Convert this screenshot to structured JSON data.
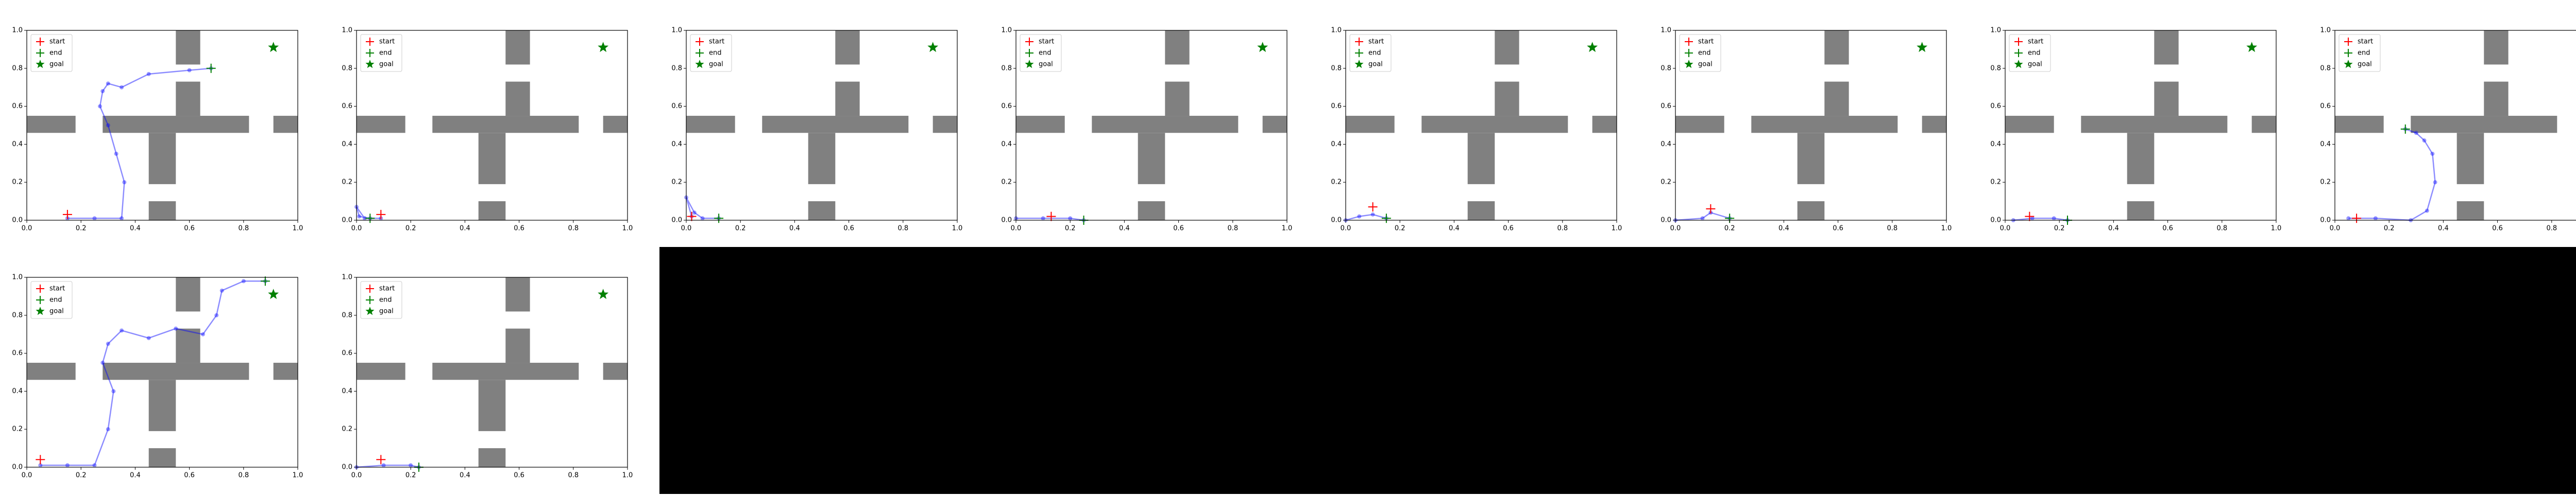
{
  "obstacles": [
    [
      0,
      0.46,
      0.18,
      0.55
    ],
    [
      0.28,
      0.46,
      0.82,
      0.55
    ],
    [
      0.91,
      0.46,
      1,
      0.55
    ],
    [
      0.55,
      0.82,
      0.64,
      1
    ],
    [
      0.55,
      0.55,
      0.64,
      0.73
    ],
    [
      0.45,
      0.19,
      0.55,
      0.46
    ],
    [
      0.45,
      0,
      0.55,
      0.1
    ]
  ],
  "chart_data": [
    {
      "type": "line",
      "xlim": [
        0,
        1
      ],
      "ylim": [
        0,
        1
      ],
      "xticks": [
        {
          "value": 0,
          "label": "0.0"
        },
        0.2,
        0.4,
        0.6,
        0.8,
        {
          "value": 1,
          "label": "1.0"
        }
      ],
      "yticks": [
        {
          "value": 0,
          "label": "0.0"
        },
        0.2,
        0.4,
        0.6,
        0.8,
        {
          "value": 1,
          "label": "1.0"
        }
      ],
      "legend": "upper left",
      "trajectory": {
        "color": "#0000ff",
        "x": [
          0.15,
          0.25,
          0.35,
          0.36,
          0.33,
          0.3,
          0.27,
          0.28,
          0.3,
          0.35,
          0.45,
          0.6,
          0.68
        ],
        "y": [
          0.01,
          0.01,
          0.01,
          0.2,
          0.35,
          0.5,
          0.6,
          0.68,
          0.72,
          0.7,
          0.77,
          0.79,
          0.8
        ]
      },
      "series": [
        {
          "name": "start",
          "color": "#ff0000",
          "marker": "+",
          "x": [
            0.15
          ],
          "y": [
            0.03
          ]
        },
        {
          "name": "end",
          "color": "#008000",
          "marker": "+",
          "x": [
            0.68
          ],
          "y": [
            0.8
          ]
        },
        {
          "name": "goal",
          "color": "#008000",
          "marker": "*",
          "x": [
            0.91
          ],
          "y": [
            0.91
          ]
        }
      ]
    },
    {
      "type": "line",
      "xlim": [
        0,
        1
      ],
      "ylim": [
        0,
        1
      ],
      "xticks": [
        {
          "value": 0,
          "label": "0.0"
        },
        0.2,
        0.4,
        0.6,
        0.8,
        {
          "value": 1,
          "label": "1.0"
        }
      ],
      "yticks": [
        {
          "value": 0,
          "label": "0.0"
        },
        0.2,
        0.4,
        0.6,
        0.8,
        {
          "value": 1,
          "label": "1.0"
        }
      ],
      "legend": "upper left",
      "trajectory": {
        "color": "#0000ff",
        "x": [
          0.09,
          0.03,
          0.0,
          0.01,
          0.05
        ],
        "y": [
          0.01,
          0.01,
          0.07,
          0.02,
          0.01
        ]
      },
      "series": [
        {
          "name": "start",
          "color": "#ff0000",
          "marker": "+",
          "x": [
            0.09
          ],
          "y": [
            0.03
          ]
        },
        {
          "name": "end",
          "color": "#008000",
          "marker": "+",
          "x": [
            0.05
          ],
          "y": [
            0.01
          ]
        },
        {
          "name": "goal",
          "color": "#008000",
          "marker": "*",
          "x": [
            0.91
          ],
          "y": [
            0.91
          ]
        }
      ]
    },
    {
      "type": "line",
      "xlim": [
        0,
        1
      ],
      "ylim": [
        0,
        1
      ],
      "xticks": [
        {
          "value": 0,
          "label": "0.0"
        },
        0.2,
        0.4,
        0.6,
        0.8,
        {
          "value": 1,
          "label": "1.0"
        }
      ],
      "yticks": [
        {
          "value": 0,
          "label": "0.0"
        },
        0.2,
        0.4,
        0.6,
        0.8,
        {
          "value": 1,
          "label": "1.0"
        }
      ],
      "legend": "upper left",
      "trajectory": {
        "color": "#0000ff",
        "x": [
          0.02,
          0.0,
          0.03,
          0.06,
          0.12
        ],
        "y": [
          0.02,
          0.12,
          0.04,
          0.01,
          0.01
        ]
      },
      "series": [
        {
          "name": "start",
          "color": "#ff0000",
          "marker": "+",
          "x": [
            0.02
          ],
          "y": [
            0.02
          ]
        },
        {
          "name": "end",
          "color": "#008000",
          "marker": "+",
          "x": [
            0.12
          ],
          "y": [
            0.01
          ]
        },
        {
          "name": "goal",
          "color": "#008000",
          "marker": "*",
          "x": [
            0.91
          ],
          "y": [
            0.91
          ]
        }
      ]
    },
    {
      "type": "line",
      "xlim": [
        0,
        1
      ],
      "ylim": [
        0,
        1
      ],
      "xticks": [
        {
          "value": 0,
          "label": "0.0"
        },
        0.2,
        0.4,
        0.6,
        0.8,
        {
          "value": 1,
          "label": "1.0"
        }
      ],
      "yticks": [
        {
          "value": 0,
          "label": "0.0"
        },
        0.2,
        0.4,
        0.6,
        0.8,
        {
          "value": 1,
          "label": "1.0"
        }
      ],
      "legend": "upper left",
      "trajectory": {
        "color": "#0000ff",
        "x": [
          0.0,
          0.1,
          0.2,
          0.25
        ],
        "y": [
          0.01,
          0.01,
          0.01,
          0.0
        ]
      },
      "series": [
        {
          "name": "start",
          "color": "#ff0000",
          "marker": "+",
          "x": [
            0.13
          ],
          "y": [
            0.02
          ]
        },
        {
          "name": "end",
          "color": "#008000",
          "marker": "+",
          "x": [
            0.25
          ],
          "y": [
            0.0
          ]
        },
        {
          "name": "goal",
          "color": "#008000",
          "marker": "*",
          "x": [
            0.91
          ],
          "y": [
            0.91
          ]
        }
      ]
    },
    {
      "type": "line",
      "xlim": [
        0,
        1
      ],
      "ylim": [
        0,
        1
      ],
      "xticks": [
        {
          "value": 0,
          "label": "0.0"
        },
        0.2,
        0.4,
        0.6,
        0.8,
        {
          "value": 1,
          "label": "1.0"
        }
      ],
      "yticks": [
        {
          "value": 0,
          "label": "0.0"
        },
        0.2,
        0.4,
        0.6,
        0.8,
        {
          "value": 1,
          "label": "1.0"
        }
      ],
      "legend": "upper left",
      "trajectory": {
        "color": "#0000ff",
        "x": [
          0.0,
          0.05,
          0.1,
          0.15
        ],
        "y": [
          0.0,
          0.02,
          0.03,
          0.01
        ]
      },
      "series": [
        {
          "name": "start",
          "color": "#ff0000",
          "marker": "+",
          "x": [
            0.1
          ],
          "y": [
            0.07
          ]
        },
        {
          "name": "end",
          "color": "#008000",
          "marker": "+",
          "x": [
            0.15
          ],
          "y": [
            0.01
          ]
        },
        {
          "name": "goal",
          "color": "#008000",
          "marker": "*",
          "x": [
            0.91
          ],
          "y": [
            0.91
          ]
        }
      ]
    },
    {
      "type": "line",
      "xlim": [
        0,
        1
      ],
      "ylim": [
        0,
        1
      ],
      "xticks": [
        {
          "value": 0,
          "label": "0.0"
        },
        0.2,
        0.4,
        0.6,
        0.8,
        {
          "value": 1,
          "label": "1.0"
        }
      ],
      "yticks": [
        {
          "value": 0,
          "label": "0.0"
        },
        0.2,
        0.4,
        0.6,
        0.8,
        {
          "value": 1,
          "label": "1.0"
        }
      ],
      "legend": "upper left",
      "trajectory": {
        "color": "#0000ff",
        "x": [
          0.0,
          0.1,
          0.13,
          0.2
        ],
        "y": [
          0.0,
          0.01,
          0.04,
          0.01
        ]
      },
      "series": [
        {
          "name": "start",
          "color": "#ff0000",
          "marker": "+",
          "x": [
            0.13
          ],
          "y": [
            0.06
          ]
        },
        {
          "name": "end",
          "color": "#008000",
          "marker": "+",
          "x": [
            0.2
          ],
          "y": [
            0.01
          ]
        },
        {
          "name": "goal",
          "color": "#008000",
          "marker": "*",
          "x": [
            0.91
          ],
          "y": [
            0.91
          ]
        }
      ]
    },
    {
      "type": "line",
      "xlim": [
        0,
        1
      ],
      "ylim": [
        0,
        1
      ],
      "xticks": [
        {
          "value": 0,
          "label": "0.0"
        },
        0.2,
        0.4,
        0.6,
        0.8,
        {
          "value": 1,
          "label": "1.0"
        }
      ],
      "yticks": [
        {
          "value": 0,
          "label": "0.0"
        },
        0.2,
        0.4,
        0.6,
        0.8,
        {
          "value": 1,
          "label": "1.0"
        }
      ],
      "legend": "upper left",
      "trajectory": {
        "color": "#0000ff",
        "x": [
          0.03,
          0.1,
          0.18,
          0.23
        ],
        "y": [
          0.0,
          0.01,
          0.01,
          0.0
        ]
      },
      "series": [
        {
          "name": "start",
          "color": "#ff0000",
          "marker": "+",
          "x": [
            0.09
          ],
          "y": [
            0.02
          ]
        },
        {
          "name": "end",
          "color": "#008000",
          "marker": "+",
          "x": [
            0.23
          ],
          "y": [
            0.0
          ]
        },
        {
          "name": "goal",
          "color": "#008000",
          "marker": "*",
          "x": [
            0.91
          ],
          "y": [
            0.91
          ]
        }
      ]
    },
    {
      "type": "line",
      "xlim": [
        0,
        1
      ],
      "ylim": [
        0,
        1
      ],
      "xticks": [
        {
          "value": 0,
          "label": "0.0"
        },
        0.2,
        0.4,
        0.6,
        0.8,
        {
          "value": 1,
          "label": "1.0"
        }
      ],
      "yticks": [
        {
          "value": 0,
          "label": "0.0"
        },
        0.2,
        0.4,
        0.6,
        0.8,
        {
          "value": 1,
          "label": "1.0"
        }
      ],
      "legend": "upper left",
      "trajectory": {
        "color": "#0000ff",
        "x": [
          0.05,
          0.15,
          0.28,
          0.34,
          0.37,
          0.36,
          0.33,
          0.3,
          0.26
        ],
        "y": [
          0.01,
          0.01,
          0.0,
          0.05,
          0.2,
          0.35,
          0.42,
          0.46,
          0.48
        ]
      },
      "series": [
        {
          "name": "start",
          "color": "#ff0000",
          "marker": "+",
          "x": [
            0.08
          ],
          "y": [
            0.01
          ]
        },
        {
          "name": "end",
          "color": "#008000",
          "marker": "+",
          "x": [
            0.26
          ],
          "y": [
            0.48
          ]
        },
        {
          "name": "goal",
          "color": "#008000",
          "marker": "*",
          "x": [
            0.91
          ],
          "y": [
            0.91
          ]
        }
      ]
    },
    {
      "type": "line",
      "xlim": [
        0,
        1
      ],
      "ylim": [
        0,
        1
      ],
      "xticks": [
        {
          "value": 0,
          "label": "0.0"
        },
        0.2,
        0.4,
        0.6,
        0.8,
        {
          "value": 1,
          "label": "1.0"
        }
      ],
      "yticks": [
        {
          "value": 0,
          "label": "0.0"
        },
        0.2,
        0.4,
        0.6,
        0.8,
        {
          "value": 1,
          "label": "1.0"
        }
      ],
      "legend": "upper left",
      "trajectory": {
        "color": "#0000ff",
        "x": [
          0.05,
          0.15,
          0.25,
          0.3,
          0.32,
          0.28,
          0.3,
          0.35,
          0.45,
          0.55,
          0.65,
          0.7,
          0.72,
          0.8,
          0.88
        ],
        "y": [
          0.01,
          0.01,
          0.01,
          0.2,
          0.4,
          0.55,
          0.65,
          0.72,
          0.68,
          0.73,
          0.7,
          0.8,
          0.93,
          0.98,
          0.98
        ]
      },
      "series": [
        {
          "name": "start",
          "color": "#ff0000",
          "marker": "+",
          "x": [
            0.05
          ],
          "y": [
            0.04
          ]
        },
        {
          "name": "end",
          "color": "#008000",
          "marker": "+",
          "x": [
            0.88
          ],
          "y": [
            0.98
          ]
        },
        {
          "name": "goal",
          "color": "#008000",
          "marker": "*",
          "x": [
            0.91
          ],
          "y": [
            0.91
          ]
        }
      ]
    },
    {
      "type": "line",
      "xlim": [
        0,
        1
      ],
      "ylim": [
        0,
        1
      ],
      "xticks": [
        {
          "value": 0,
          "label": "0.0"
        },
        0.2,
        0.4,
        0.6,
        0.8,
        {
          "value": 1,
          "label": "1.0"
        }
      ],
      "yticks": [
        {
          "value": 0,
          "label": "0.0"
        },
        0.2,
        0.4,
        0.6,
        0.8,
        {
          "value": 1,
          "label": "1.0"
        }
      ],
      "legend": "upper left",
      "trajectory": {
        "color": "#0000ff",
        "x": [
          0.0,
          0.1,
          0.2,
          0.23
        ],
        "y": [
          0.0,
          0.01,
          0.01,
          0.0
        ]
      },
      "series": [
        {
          "name": "start",
          "color": "#ff0000",
          "marker": "+",
          "x": [
            0.09
          ],
          "y": [
            0.04
          ]
        },
        {
          "name": "end",
          "color": "#008000",
          "marker": "+",
          "x": [
            0.23
          ],
          "y": [
            0.0
          ]
        },
        {
          "name": "goal",
          "color": "#008000",
          "marker": "*",
          "x": [
            0.91
          ],
          "y": [
            0.91
          ]
        }
      ]
    }
  ]
}
